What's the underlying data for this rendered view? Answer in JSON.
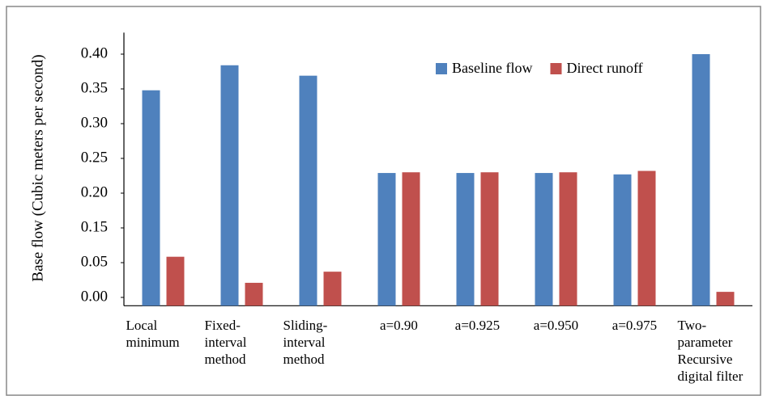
{
  "chart_data": {
    "type": "bar",
    "y_label": "Base flow (Cubic meters per second)",
    "categories": [
      "Local\nminimum",
      "Fixed-\ninterval\nmethod",
      "Sliding-\ninterval\nmethod",
      "a=0.90",
      "a=0.925",
      "a=0.950",
      "a=0.975",
      "Two-\nparameter\nRecursive\ndigital filter"
    ],
    "series": [
      {
        "name": "Baseline flow",
        "color": "#4f81bd",
        "values": [
          0.348,
          0.384,
          0.369,
          0.229,
          0.229,
          0.229,
          0.227,
          0.4
        ]
      },
      {
        "name": "Direct runoff",
        "color": "#c0504d",
        "values": [
          0.067,
          0.021,
          0.037,
          0.23,
          0.23,
          0.23,
          0.232,
          0.008
        ]
      }
    ],
    "ylim": [
      -0.012,
      0.431
    ],
    "yticks": [
      {
        "value": 0,
        "label": "0.00"
      },
      {
        "value": 0.05,
        "label": "0.05"
      },
      {
        "value": 0.15,
        "label": "0.15"
      },
      {
        "value": 0.2,
        "label": "0.20"
      },
      {
        "value": 0.25,
        "label": "0.25"
      },
      {
        "value": 0.3,
        "label": "0.30"
      },
      {
        "value": 0.35,
        "label": "0.35"
      },
      {
        "value": 0.4,
        "label": "0.40"
      }
    ],
    "legend": "top-right"
  }
}
